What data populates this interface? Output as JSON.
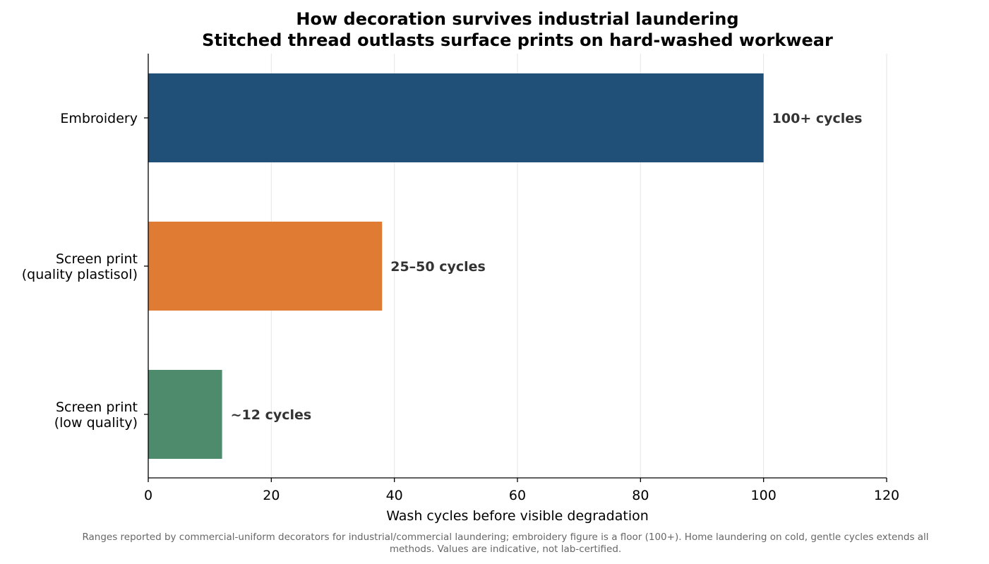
{
  "chart_data": {
    "type": "bar",
    "orientation": "horizontal",
    "title": "How decoration survives industrial laundering",
    "subtitle": "Stitched thread outlasts surface prints on hard-washed workwear",
    "xlabel": "Wash cycles before visible degradation",
    "ylabel": "",
    "xlim": [
      0,
      120
    ],
    "xticks": [
      0,
      20,
      40,
      60,
      80,
      100,
      120
    ],
    "grid": "x",
    "categories": [
      [
        "Embroidery"
      ],
      [
        "Screen print",
        "(quality plastisol)"
      ],
      [
        "Screen print",
        "(low quality)"
      ]
    ],
    "values": [
      100,
      38,
      12
    ],
    "data_labels": [
      "100+ cycles",
      "25–50 cycles",
      "~12 cycles"
    ],
    "colors": [
      "#205078",
      "#e07b33",
      "#4e8b6d"
    ],
    "footnote": [
      "Ranges reported by commercial-uniform decorators for industrial/commercial laundering; embroidery figure is a floor (100+). Home laundering on cold, gentle cycles extends all",
      "methods. Values are indicative, not lab-certified."
    ]
  }
}
